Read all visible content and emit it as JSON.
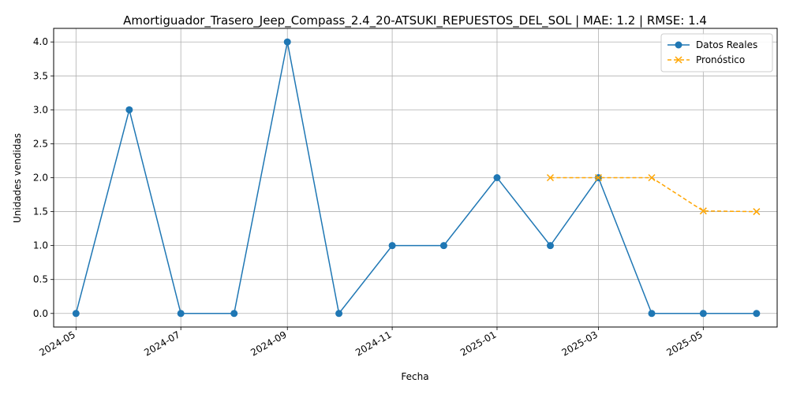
{
  "chart_data": {
    "type": "line",
    "title": "Amortiguador_Trasero_Jeep_Compass_2.4_20-ATSUKI_REPUESTOS_DEL_SOL | MAE: 1.2 | RMSE: 1.4",
    "xlabel": "Fecha",
    "ylabel": "Unidades vendidas",
    "xlim": [
      "2024-04-18",
      "2025-06-13"
    ],
    "ylim": [
      -0.2,
      4.2
    ],
    "x_ticks": [
      "2024-05",
      "2024-07",
      "2024-09",
      "2024-11",
      "2025-01",
      "2025-03",
      "2025-05"
    ],
    "y_ticks": [
      "0.0",
      "0.5",
      "1.0",
      "1.5",
      "2.0",
      "2.5",
      "3.0",
      "3.5",
      "4.0"
    ],
    "grid": true,
    "legend_position": "top-right",
    "series": [
      {
        "name": "Datos Reales",
        "color": "#1f77b4",
        "marker": "circle",
        "linestyle": "solid",
        "x": [
          "2024-05-01",
          "2024-06-01",
          "2024-07-01",
          "2024-08-01",
          "2024-09-01",
          "2024-10-01",
          "2024-11-01",
          "2024-12-01",
          "2025-01-01",
          "2025-02-01",
          "2025-03-01",
          "2025-04-01",
          "2025-05-01",
          "2025-06-01"
        ],
        "values": [
          0,
          3,
          0,
          0,
          4,
          0,
          1,
          1,
          2,
          1,
          2,
          0,
          0,
          0
        ]
      },
      {
        "name": "Pronóstico",
        "color": "#ffa500",
        "marker": "x",
        "linestyle": "dashed",
        "x": [
          "2025-02-01",
          "2025-03-01",
          "2025-04-01",
          "2025-05-01",
          "2025-06-01"
        ],
        "values": [
          2.0,
          2.0,
          2.0,
          1.51,
          1.5
        ]
      }
    ]
  }
}
